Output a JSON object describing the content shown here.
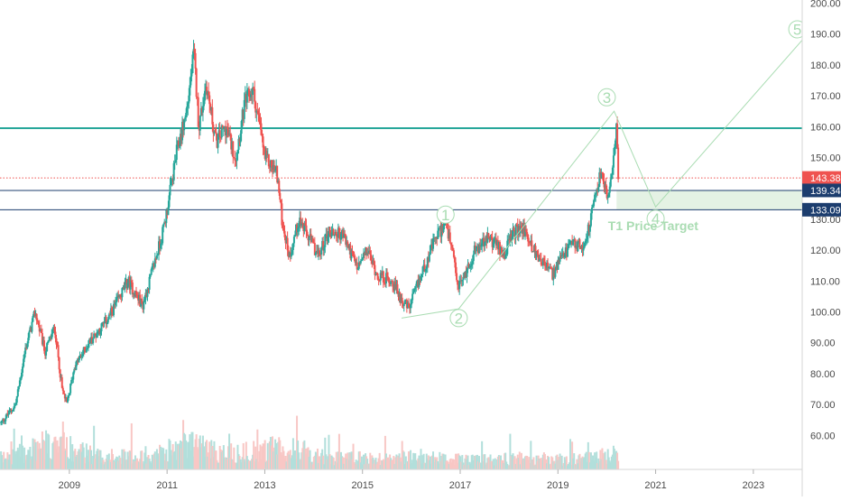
{
  "chart_data": {
    "type": "candlestick",
    "title": "",
    "xlabel": "",
    "ylabel": "",
    "x_ticks": [
      "2009",
      "2011",
      "2013",
      "2015",
      "2017",
      "2019",
      "2021",
      "2023"
    ],
    "y_ticks": [
      "60.00",
      "70.00",
      "80.00",
      "90.00",
      "100.00",
      "110.00",
      "120.00",
      "130.00",
      "140.00",
      "150.00",
      "160.00",
      "170.00",
      "180.00",
      "190.00",
      "200.00"
    ],
    "xlim": [
      2007.58,
      2024.0
    ],
    "ylim": [
      49,
      201
    ],
    "price_path": [
      [
        2007.6,
        64
      ],
      [
        2007.9,
        70
      ],
      [
        2008.1,
        88
      ],
      [
        2008.3,
        100
      ],
      [
        2008.5,
        87
      ],
      [
        2008.7,
        95
      ],
      [
        2008.85,
        75
      ],
      [
        2008.95,
        70
      ],
      [
        2009.1,
        82
      ],
      [
        2009.4,
        90
      ],
      [
        2009.8,
        98
      ],
      [
        2010.2,
        110
      ],
      [
        2010.5,
        102
      ],
      [
        2010.9,
        125
      ],
      [
        2011.0,
        133
      ],
      [
        2011.2,
        152
      ],
      [
        2011.4,
        165
      ],
      [
        2011.55,
        184
      ],
      [
        2011.65,
        160
      ],
      [
        2011.8,
        174
      ],
      [
        2012.0,
        155
      ],
      [
        2012.2,
        160
      ],
      [
        2012.4,
        150
      ],
      [
        2012.6,
        168
      ],
      [
        2012.75,
        172
      ],
      [
        2012.9,
        160
      ],
      [
        2013.0,
        150
      ],
      [
        2013.25,
        145
      ],
      [
        2013.35,
        130
      ],
      [
        2013.5,
        118
      ],
      [
        2013.7,
        130
      ],
      [
        2013.9,
        124
      ],
      [
        2014.1,
        118
      ],
      [
        2014.3,
        126
      ],
      [
        2014.6,
        125
      ],
      [
        2014.9,
        114
      ],
      [
        2015.1,
        120
      ],
      [
        2015.3,
        112
      ],
      [
        2015.6,
        110
      ],
      [
        2015.8,
        104
      ],
      [
        2015.95,
        101
      ],
      [
        2016.2,
        112
      ],
      [
        2016.5,
        124
      ],
      [
        2016.7,
        129
      ],
      [
        2016.85,
        118
      ],
      [
        2016.95,
        108
      ],
      [
        2017.1,
        112
      ],
      [
        2017.3,
        120
      ],
      [
        2017.6,
        124
      ],
      [
        2017.9,
        119
      ],
      [
        2018.1,
        126
      ],
      [
        2018.3,
        127
      ],
      [
        2018.5,
        120
      ],
      [
        2018.7,
        116
      ],
      [
        2018.9,
        112
      ],
      [
        2019.1,
        118
      ],
      [
        2019.3,
        122
      ],
      [
        2019.5,
        121
      ],
      [
        2019.65,
        128
      ],
      [
        2019.8,
        140
      ],
      [
        2019.9,
        146
      ],
      [
        2020.0,
        137
      ],
      [
        2020.1,
        142
      ],
      [
        2020.15,
        155
      ],
      [
        2020.2,
        159
      ],
      [
        2020.25,
        143
      ]
    ],
    "volume_profile": [
      [
        2007.6,
        8
      ],
      [
        2008.0,
        12
      ],
      [
        2008.5,
        18
      ],
      [
        2009.0,
        16
      ],
      [
        2009.5,
        10
      ],
      [
        2010.0,
        9
      ],
      [
        2010.5,
        11
      ],
      [
        2011.0,
        13
      ],
      [
        2011.5,
        19
      ],
      [
        2012.0,
        13
      ],
      [
        2012.5,
        12
      ],
      [
        2013.0,
        14
      ],
      [
        2013.5,
        16
      ],
      [
        2014.0,
        10
      ],
      [
        2014.5,
        8
      ],
      [
        2015.0,
        8
      ],
      [
        2015.5,
        8
      ],
      [
        2016.0,
        9
      ],
      [
        2016.5,
        8
      ],
      [
        2017.0,
        7
      ],
      [
        2017.5,
        7
      ],
      [
        2018.0,
        8
      ],
      [
        2018.5,
        8
      ],
      [
        2019.0,
        7
      ],
      [
        2019.5,
        8
      ],
      [
        2020.0,
        10
      ],
      [
        2020.25,
        14
      ]
    ],
    "horizontal_levels": [
      {
        "price": 159.5,
        "color": "#26a69a",
        "style": "solid",
        "width": 2
      },
      {
        "price": 143.38,
        "color": "#ef5350",
        "style": "dotted",
        "width": 1
      },
      {
        "price": 139.34,
        "color": "#1c3d6e",
        "style": "solid",
        "width": 1
      },
      {
        "price": 133.09,
        "color": "#1c3d6e",
        "style": "solid",
        "width": 1
      }
    ],
    "price_tags": [
      {
        "label": "143.38",
        "price": 143.38,
        "bg": "#ef5350"
      },
      {
        "label": "139.34",
        "price": 139.34,
        "bg": "#1c3d6e"
      },
      {
        "label": "133.09",
        "price": 133.09,
        "bg": "#1c3d6e"
      }
    ],
    "elliott_waves": [
      {
        "label": "1",
        "x": 2016.7,
        "y": 131.5
      },
      {
        "label": "2",
        "x": 2016.97,
        "y": 98.0
      },
      {
        "label": "3",
        "x": 2020.0,
        "y": 169.5
      },
      {
        "label": "4",
        "x": 2021.0,
        "y": 130.2
      },
      {
        "label": "5",
        "x": 2023.9,
        "y": 191.5
      }
    ],
    "wave_path": [
      [
        2015.8,
        98
      ],
      [
        2016.97,
        101
      ],
      [
        2020.15,
        165
      ],
      [
        2021.0,
        134
      ],
      [
        2024.0,
        188
      ]
    ],
    "target_zone": {
      "x0": 2020.2,
      "x1": 2024.0,
      "y0": 133.09,
      "y1": 139.34
    },
    "annotations": [
      {
        "text": "T1 Price Target",
        "x": 2020.95,
        "y": 126.5
      }
    ],
    "colors": {
      "up": "#26a69a",
      "down": "#ef5350",
      "vol_up": "#b2dfdb",
      "vol_down": "#f8c7c5",
      "wave": "#a9dcb2",
      "target_zone": "#e4f2e4",
      "axis_text": "#4a4a4a",
      "axis_line": "#d6d6d6"
    }
  }
}
